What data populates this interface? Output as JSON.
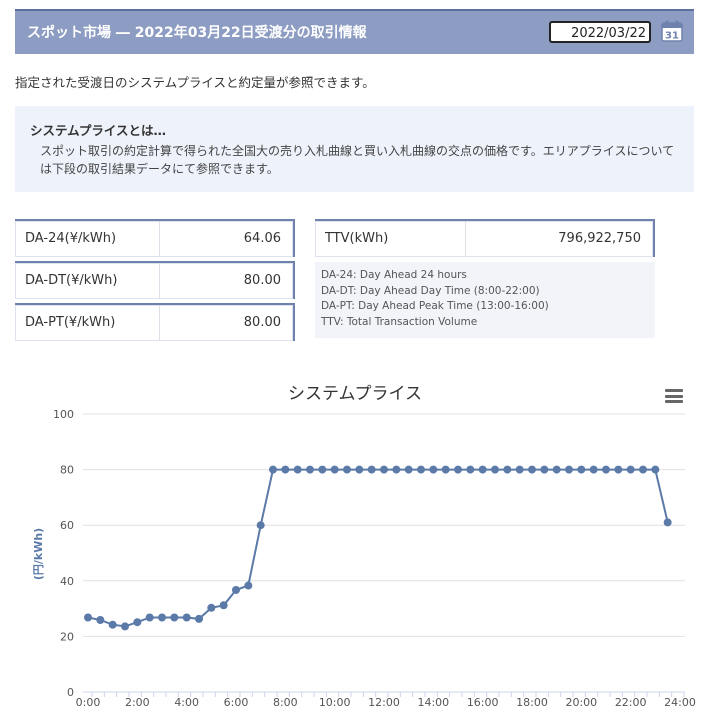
{
  "header": {
    "title": "スポット市場 ― 2022年03月22日受渡分の取引情報",
    "date_value": "2022/03/22",
    "calendar_day": "31"
  },
  "intro_text": "指定された受渡日のシステムプライスと約定量が参照できます。",
  "info": {
    "title": "システムプライスとは…",
    "body": "スポット取引の約定計算で得られた全国大の売り入札曲線と買い入札曲線の交点の価格です。エリアプライスについては下段の取引結果データにて参照できます。"
  },
  "stats": [
    {
      "label": "DA-24(¥/kWh)",
      "value": "64.06"
    },
    {
      "label": "DA-DT(¥/kWh)",
      "value": "80.00"
    },
    {
      "label": "DA-PT(¥/kWh)",
      "value": "80.00"
    }
  ],
  "ttv": {
    "label": "TTV(kWh)",
    "value": "796,922,750"
  },
  "legend_notes": [
    "DA-24: Day Ahead 24 hours",
    "DA-DT: Day Ahead Day Time (8:00-22:00)",
    "DA-PT: Day Ahead Peak Time (13:00-16:00)",
    "TTV: Total Transaction Volume"
  ],
  "colors": {
    "accent": "#8d9cc2",
    "series": "#5b7aa8"
  },
  "chart_data": {
    "type": "line",
    "title": "システムプライス",
    "ylabel": "(円/kWh)",
    "ylim": [
      0,
      100
    ],
    "yticks": [
      0,
      20,
      40,
      60,
      80,
      100
    ],
    "xticks": [
      "0:00",
      "2:00",
      "4:00",
      "6:00",
      "8:00",
      "10:00",
      "12:00",
      "14:00",
      "16:00",
      "18:00",
      "20:00",
      "22:00",
      "24:00"
    ],
    "series": [
      {
        "values": [
          26.8,
          25.9,
          24.2,
          23.6,
          25.1,
          26.8,
          26.8,
          26.8,
          26.8,
          26.3,
          30.3,
          31.2,
          36.7,
          38.3,
          60,
          80,
          80,
          80,
          80,
          80,
          80,
          80,
          80,
          80,
          80,
          80,
          80,
          80,
          80,
          80,
          80,
          80,
          80,
          80,
          80,
          80,
          80,
          80,
          80,
          80,
          80,
          80,
          80,
          80,
          80,
          80,
          80,
          61
        ]
      }
    ]
  }
}
